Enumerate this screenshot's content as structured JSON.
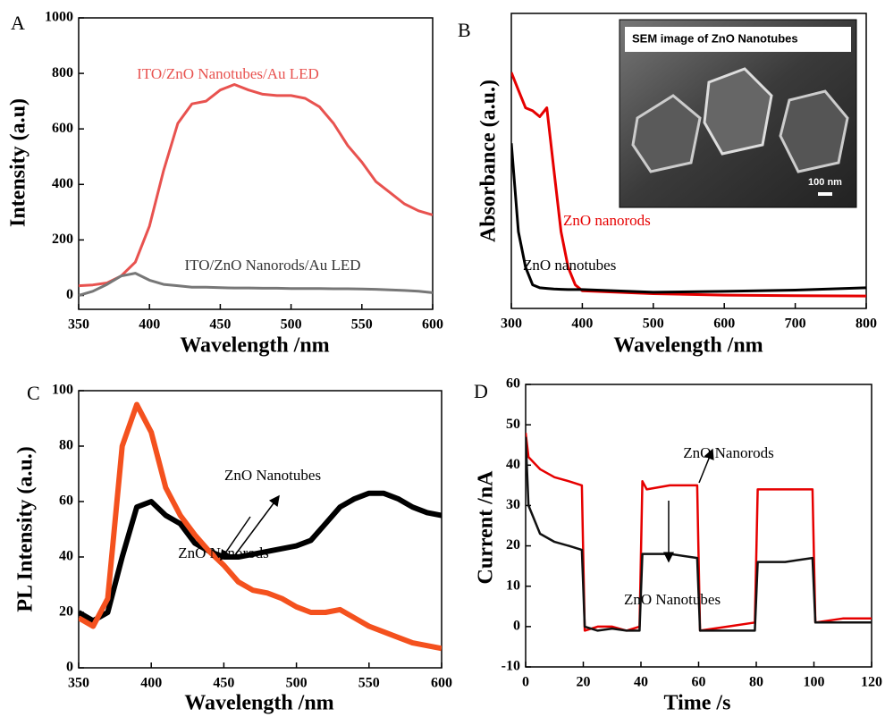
{
  "chart_data": [
    {
      "type": "line",
      "panel_label": "A",
      "xlabel": "Wavelength /nm",
      "ylabel": "Intensity (a.u)",
      "x": [
        350,
        360,
        370,
        380,
        390,
        400,
        410,
        420,
        430,
        440,
        450,
        460,
        470,
        480,
        490,
        500,
        510,
        520,
        530,
        540,
        550,
        560,
        570,
        580,
        590,
        600
      ],
      "xlim": [
        350,
        600
      ],
      "xticks": [
        350,
        400,
        450,
        500,
        550,
        600
      ],
      "ylim": [
        -50,
        1000
      ],
      "yticks": [
        0,
        200,
        400,
        600,
        800,
        1000
      ],
      "series": [
        {
          "name": "ITO/ZnO Nanotubes/Au LED",
          "color": "#e8524f",
          "values": [
            35,
            38,
            45,
            70,
            120,
            250,
            450,
            620,
            690,
            700,
            740,
            760,
            740,
            725,
            720,
            720,
            710,
            680,
            620,
            540,
            480,
            410,
            370,
            330,
            305,
            290
          ]
        },
        {
          "name": "ITO/ZnO Nanorods/Au LED",
          "color": "#777777",
          "values": [
            0,
            15,
            40,
            70,
            80,
            55,
            40,
            35,
            30,
            30,
            28,
            27,
            27,
            26,
            26,
            25,
            25,
            25,
            24,
            24,
            23,
            22,
            20,
            18,
            15,
            10
          ]
        }
      ]
    },
    {
      "type": "line",
      "panel_label": "B",
      "xlabel": "Wavelength /nm",
      "ylabel": "Absorbance (a.u.)",
      "x": [
        300,
        310,
        320,
        330,
        340,
        350,
        360,
        370,
        380,
        390,
        400,
        500,
        600,
        700,
        800
      ],
      "xlim": [
        300,
        800
      ],
      "xticks": [
        300,
        400,
        500,
        600,
        700,
        800
      ],
      "ylim": [
        0,
        1
      ],
      "yticks": [],
      "inset": {
        "title": "SEM image of ZnO Nanotubes",
        "scale_label": "100 nm"
      },
      "series": [
        {
          "name": "ZnO nanorods",
          "color": "#e60000",
          "values": [
            0.8,
            0.74,
            0.68,
            0.67,
            0.65,
            0.68,
            0.47,
            0.26,
            0.14,
            0.08,
            0.06,
            0.05,
            0.045,
            0.043,
            0.042
          ]
        },
        {
          "name": "ZnO nanotubes",
          "color": "#000000",
          "values": [
            0.56,
            0.26,
            0.14,
            0.08,
            0.07,
            0.068,
            0.066,
            0.065,
            0.064,
            0.064,
            0.064,
            0.055,
            0.058,
            0.062,
            0.07
          ]
        }
      ]
    },
    {
      "type": "line",
      "panel_label": "C",
      "xlabel": "Wavelength /nm",
      "ylabel": "PL Intensity (a.u.)",
      "x": [
        350,
        360,
        370,
        380,
        390,
        400,
        410,
        420,
        430,
        440,
        450,
        460,
        470,
        480,
        490,
        500,
        510,
        520,
        530,
        540,
        550,
        560,
        570,
        580,
        590,
        600
      ],
      "xlim": [
        350,
        600
      ],
      "xticks": [
        350,
        400,
        450,
        500,
        550,
        600
      ],
      "ylim": [
        0,
        100
      ],
      "yticks": [
        0,
        20,
        40,
        60,
        80,
        100
      ],
      "series": [
        {
          "name": "ZnO Nanotubes",
          "color": "#000000",
          "values": [
            20,
            17,
            20,
            40,
            58,
            60,
            55,
            52,
            45,
            42,
            40,
            40,
            41,
            42,
            43,
            44,
            46,
            52,
            58,
            61,
            63,
            63,
            61,
            58,
            56,
            55
          ]
        },
        {
          "name": "ZnO Nanorods",
          "color": "#f4511e",
          "values": [
            18,
            15,
            25,
            80,
            95,
            85,
            65,
            55,
            48,
            42,
            37,
            31,
            28,
            27,
            25,
            22,
            20,
            20,
            21,
            18,
            15,
            13,
            11,
            9,
            8,
            7
          ]
        }
      ]
    },
    {
      "type": "line",
      "panel_label": "D",
      "xlabel": "Time /s",
      "ylabel": "Current /nA",
      "x": [
        0,
        1,
        5,
        10,
        15,
        19.5,
        20.5,
        25,
        30,
        35,
        39.5,
        40.5,
        42,
        50,
        59.5,
        60.5,
        70,
        79.5,
        80.5,
        90,
        99.5,
        100.5,
        110,
        120
      ],
      "xlim": [
        0,
        120
      ],
      "xticks": [
        0,
        20,
        40,
        60,
        80,
        100,
        120
      ],
      "ylim": [
        -10,
        60
      ],
      "yticks": [
        -10,
        0,
        10,
        20,
        30,
        40,
        50,
        60
      ],
      "series": [
        {
          "name": "ZnO Nanorods",
          "color": "#e60000",
          "values": [
            48,
            42,
            39,
            37,
            36,
            35,
            -1,
            0,
            0,
            -1,
            0,
            36,
            34,
            35,
            35,
            -1,
            0,
            1,
            34,
            34,
            34,
            1,
            2,
            2
          ]
        },
        {
          "name": "ZnO Nanotubes",
          "color": "#111111",
          "values": [
            47,
            30,
            23,
            21,
            20,
            19,
            0,
            -1,
            -0.5,
            -1,
            -1,
            18,
            18,
            18,
            17,
            -1,
            -1,
            -1,
            16,
            16,
            17,
            1,
            1,
            1
          ]
        }
      ]
    }
  ]
}
